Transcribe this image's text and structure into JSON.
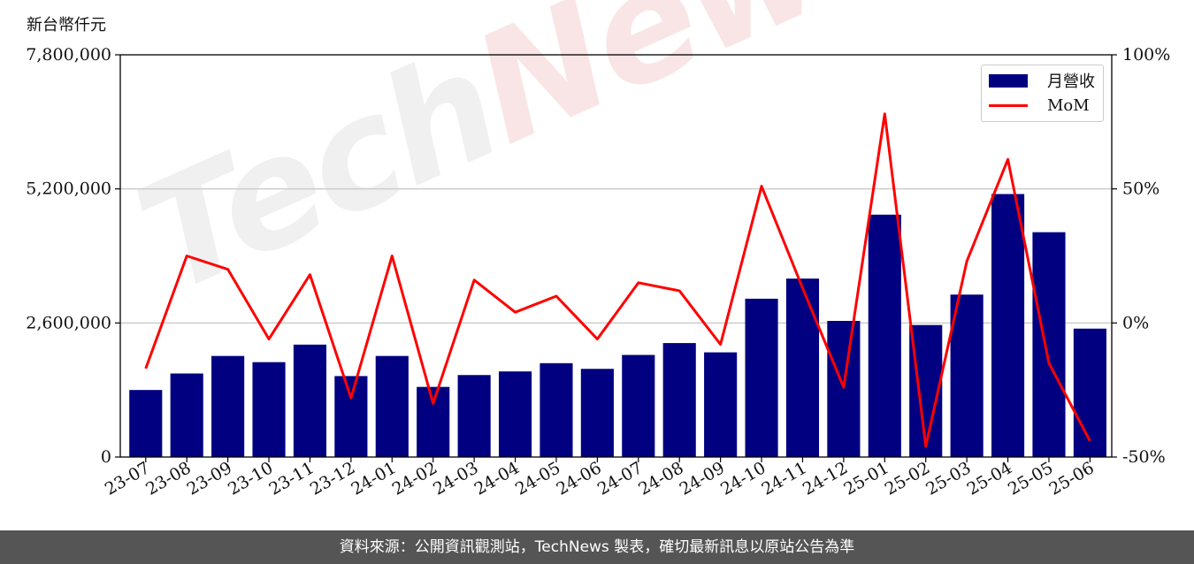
{
  "unit_label": "新台幣仟元",
  "watermark": {
    "part1": "Tech",
    "part2": "News"
  },
  "footer_text": "資料來源：公開資訊觀測站，TechNews 製表，確切最新訊息以原站公告為準",
  "legend": {
    "bar_label": "月營收",
    "line_label": "MoM"
  },
  "colors": {
    "bar": "#000080",
    "line": "#ff0000",
    "grid": "#cccccc"
  },
  "chart_data": {
    "type": "bar",
    "categories": [
      "23-07",
      "23-08",
      "23-09",
      "23-10",
      "23-11",
      "23-12",
      "24-01",
      "24-02",
      "24-03",
      "24-04",
      "24-05",
      "24-06",
      "24-07",
      "24-08",
      "24-09",
      "24-10",
      "24-11",
      "24-12",
      "25-01",
      "25-02",
      "25-03",
      "25-04",
      "25-05",
      "25-06"
    ],
    "series": [
      {
        "name": "月營收",
        "type": "bar",
        "axis": "left",
        "values": [
          1300000,
          1620000,
          1960000,
          1840000,
          2180000,
          1570000,
          1960000,
          1360000,
          1590000,
          1660000,
          1820000,
          1710000,
          1980000,
          2210000,
          2030000,
          3070000,
          3460000,
          2640000,
          4700000,
          2560000,
          3150000,
          5100000,
          4360000,
          2490000
        ]
      },
      {
        "name": "MoM",
        "type": "line",
        "axis": "right",
        "values": [
          -17,
          25,
          20,
          -6,
          18,
          -28,
          25,
          -30,
          16,
          4,
          10,
          -6,
          15,
          12,
          -8,
          51,
          13,
          -24,
          78,
          -46,
          23,
          61,
          -15,
          -44
        ]
      }
    ],
    "y_left": {
      "min": 0,
      "max": 7800000,
      "ticks": [
        0,
        2600000,
        5200000,
        7800000
      ],
      "tick_labels": [
        "0",
        "2,600,000",
        "5,200,000",
        "7,800,000"
      ]
    },
    "y_right": {
      "min": -50,
      "max": 100,
      "ticks": [
        -50,
        0,
        50,
        100
      ],
      "tick_labels": [
        "-50%",
        "0%",
        "50%",
        "100%"
      ]
    },
    "grid": true,
    "legend_position": "top-right"
  }
}
